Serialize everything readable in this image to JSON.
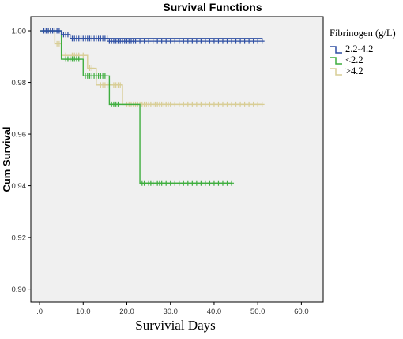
{
  "chart_data": {
    "type": "line",
    "title": "Survival Functions",
    "xlabel": "Survivial Days",
    "ylabel": "Cum Survival",
    "xlim": [
      -2,
      65
    ],
    "ylim": [
      0.895,
      1.0055
    ],
    "x_ticks": [
      0,
      10,
      20,
      30,
      40,
      50,
      60
    ],
    "x_tick_labels": [
      ".0",
      "10.0",
      "20.0",
      "30.0",
      "40.0",
      "50.0",
      "60.0"
    ],
    "y_ticks": [
      0.9,
      0.92,
      0.94,
      0.96,
      0.98,
      1.0
    ],
    "y_tick_labels": [
      "0.90",
      "0.92",
      "0.94",
      "0.96",
      "0.98",
      "1.00"
    ],
    "legend_title": "Fibrinogen (g/L)",
    "legend_position": "right",
    "grid": false,
    "background_color": "#f0f0f0",
    "series": [
      {
        "name": "2.2-4.2",
        "color": "#2e4fa3",
        "step_x": [
          0,
          5,
          7,
          51
        ],
        "step_y": [
          1.0,
          0.9985,
          0.997,
          0.996
        ],
        "censored_x": [
          1,
          1.5,
          2,
          2.5,
          3,
          3.5,
          4,
          4.5,
          5.5,
          6,
          6.5,
          7.5,
          8,
          8.5,
          9,
          9.5,
          10,
          10.5,
          11,
          11.5,
          12,
          12.5,
          13,
          13.5,
          14,
          14.5,
          15,
          15.5,
          16,
          16.5,
          17,
          17.5,
          18,
          18.5,
          19,
          19.5,
          20,
          20.5,
          21,
          21.5,
          22,
          23,
          24,
          25,
          26,
          27,
          28,
          29,
          30,
          31,
          32,
          33,
          34,
          35,
          36,
          37,
          38,
          39,
          40,
          41,
          42,
          43,
          44,
          45,
          46,
          47,
          48,
          49,
          50,
          51
        ],
        "censored_y": [
          1.0,
          1.0,
          1.0,
          1.0,
          1.0,
          1.0,
          1.0,
          1.0,
          0.9985,
          0.9985,
          0.9985,
          0.997,
          0.997,
          0.997,
          0.997,
          0.997,
          0.997,
          0.997,
          0.997,
          0.997,
          0.997,
          0.997,
          0.997,
          0.997,
          0.997,
          0.997,
          0.997,
          0.997,
          0.996,
          0.996,
          0.996,
          0.996,
          0.996,
          0.996,
          0.996,
          0.996,
          0.996,
          0.996,
          0.996,
          0.996,
          0.996,
          0.996,
          0.996,
          0.996,
          0.996,
          0.996,
          0.996,
          0.996,
          0.996,
          0.996,
          0.996,
          0.996,
          0.996,
          0.996,
          0.996,
          0.996,
          0.996,
          0.996,
          0.996,
          0.996,
          0.996,
          0.996,
          0.996,
          0.996,
          0.996,
          0.996,
          0.996,
          0.996,
          0.996,
          0.996
        ]
      },
      {
        "name": "<2.2",
        "color": "#3fae3f",
        "step_x": [
          0,
          5,
          10,
          16,
          23,
          44
        ],
        "step_y": [
          1.0,
          0.989,
          0.9825,
          0.9715,
          0.941,
          0.941
        ],
        "censored_x": [
          6,
          6.5,
          7,
          7.5,
          8,
          8.5,
          9,
          10.5,
          11,
          11.5,
          12,
          12.5,
          13,
          13.5,
          14,
          14.5,
          15,
          16.5,
          17,
          17.5,
          18,
          23.5,
          24,
          25,
          25.5,
          26,
          27,
          27.5,
          28,
          29,
          30,
          31,
          32,
          33,
          34,
          35,
          36,
          37,
          38,
          39,
          40,
          41,
          42,
          43,
          44
        ],
        "censored_y": [
          0.989,
          0.989,
          0.989,
          0.989,
          0.989,
          0.989,
          0.989,
          0.9825,
          0.9825,
          0.9825,
          0.9825,
          0.9825,
          0.9825,
          0.9825,
          0.9825,
          0.9825,
          0.9825,
          0.9715,
          0.9715,
          0.9715,
          0.9715,
          0.941,
          0.941,
          0.941,
          0.941,
          0.941,
          0.941,
          0.941,
          0.941,
          0.941,
          0.941,
          0.941,
          0.941,
          0.941,
          0.941,
          0.941,
          0.941,
          0.941,
          0.941,
          0.941,
          0.941,
          0.941,
          0.941,
          0.941,
          0.941
        ]
      },
      {
        "name": ">4.2",
        "color": "#d8cd95",
        "step_x": [
          0,
          3.5,
          5,
          7,
          11,
          13,
          19,
          51
        ],
        "step_y": [
          1.0,
          0.995,
          0.9905,
          0.9905,
          0.9855,
          0.979,
          0.9715,
          0.9715
        ],
        "censored_x": [
          2,
          2.5,
          4,
          4.5,
          6,
          7.5,
          8,
          8.5,
          9,
          10,
          11.5,
          12,
          14,
          14.5,
          15,
          15.5,
          16,
          17,
          17.5,
          18,
          18.5,
          20,
          20.5,
          21,
          21.5,
          22,
          22.5,
          23,
          23.5,
          24,
          24.5,
          25,
          25.5,
          26,
          26.5,
          27,
          27.5,
          28,
          28.5,
          29,
          29.5,
          30,
          31,
          32,
          33,
          34,
          35,
          36,
          37,
          38,
          39,
          40,
          41,
          42,
          43,
          44,
          45,
          46,
          47,
          48,
          49,
          50,
          51
        ],
        "censored_y": [
          1.0,
          1.0,
          0.995,
          0.995,
          0.9905,
          0.9905,
          0.9905,
          0.9905,
          0.9905,
          0.9905,
          0.9855,
          0.9855,
          0.979,
          0.979,
          0.979,
          0.979,
          0.979,
          0.979,
          0.979,
          0.979,
          0.979,
          0.9715,
          0.9715,
          0.9715,
          0.9715,
          0.9715,
          0.9715,
          0.9715,
          0.9715,
          0.9715,
          0.9715,
          0.9715,
          0.9715,
          0.9715,
          0.9715,
          0.9715,
          0.9715,
          0.9715,
          0.9715,
          0.9715,
          0.9715,
          0.9715,
          0.9715,
          0.9715,
          0.9715,
          0.9715,
          0.9715,
          0.9715,
          0.9715,
          0.9715,
          0.9715,
          0.9715,
          0.9715,
          0.9715,
          0.9715,
          0.9715,
          0.9715,
          0.9715,
          0.9715,
          0.9715,
          0.9715,
          0.9715,
          0.9715
        ]
      }
    ]
  }
}
